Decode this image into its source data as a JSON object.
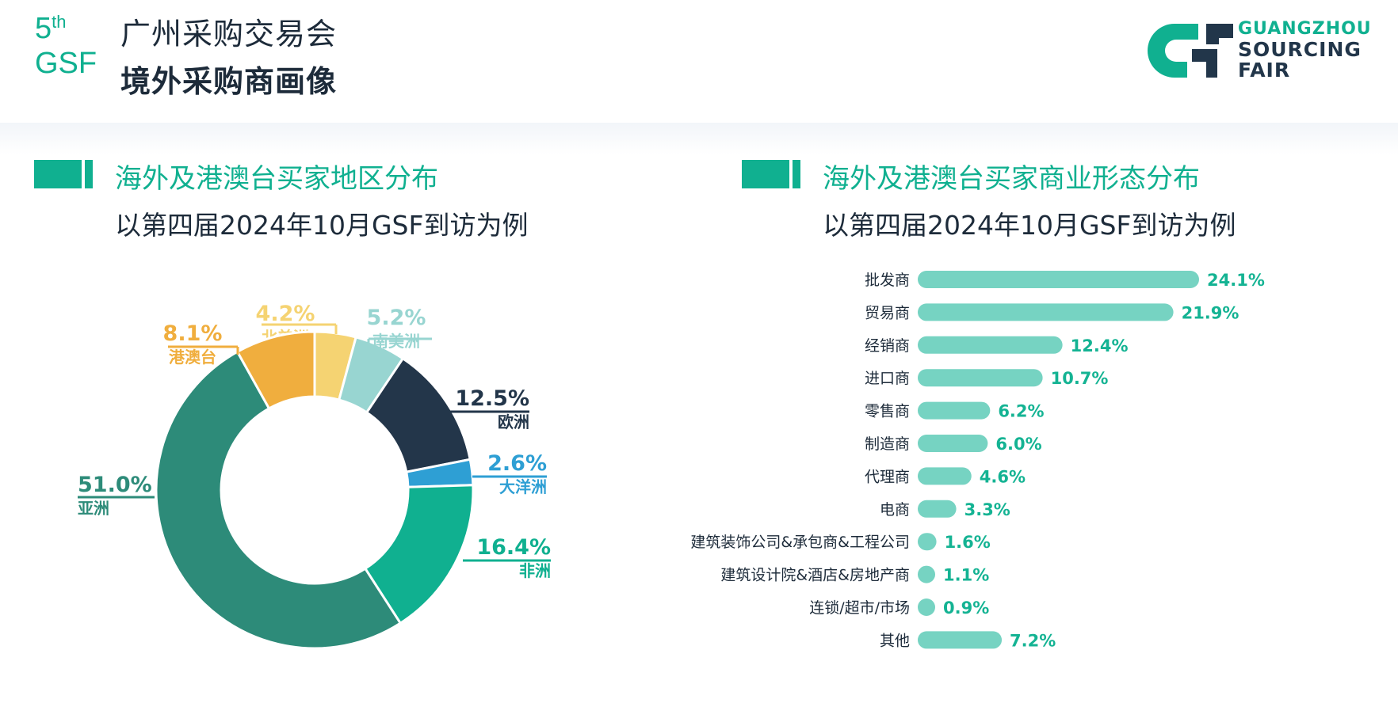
{
  "header": {
    "edition_number": "5",
    "edition_suffix": "th",
    "edition_abbr": "GSF",
    "fair_name": "广州采购交易会",
    "page_title": "境外采购商画像",
    "logo_lines": [
      "GUANGZHOU",
      "SOURCING",
      "FAIR"
    ]
  },
  "left_section": {
    "title": "海外及港澳台买家地区分布",
    "subtitle": "以第四届2024年10月GSF到访为例"
  },
  "right_section": {
    "title": "海外及港澳台买家商业形态分布",
    "subtitle": "以第四届2024年10月GSF到访为例"
  },
  "colors": {
    "accent": "#10b090",
    "dark": "#1d2b3a",
    "bar": "#76d3c2"
  },
  "chart_data": [
    {
      "type": "pie",
      "variant": "donut",
      "slices": [
        {
          "label": "北美洲",
          "value": 4.2,
          "display": "4.2%",
          "color": "#f5d372"
        },
        {
          "label": "南美洲",
          "value": 5.2,
          "display": "5.2%",
          "color": "#98d5d1"
        },
        {
          "label": "欧洲",
          "value": 12.5,
          "display": "12.5%",
          "color": "#23364a"
        },
        {
          "label": "大洋洲",
          "value": 2.6,
          "display": "2.6%",
          "color": "#2e9fd4"
        },
        {
          "label": "非洲",
          "value": 16.4,
          "display": "16.4%",
          "color": "#10b090"
        },
        {
          "label": "亚洲",
          "value": 51.0,
          "display": "51.0%",
          "color": "#2d8b79"
        },
        {
          "label": "港澳台",
          "value": 8.1,
          "display": "8.1%",
          "color": "#f0ae3e"
        }
      ]
    },
    {
      "type": "bar",
      "orientation": "horizontal",
      "categories": [
        "批发商",
        "贸易商",
        "经销商",
        "进口商",
        "零售商",
        "制造商",
        "代理商",
        "电商",
        "建筑装饰公司&承包商&工程公司",
        "建筑设计院&酒店&房地产商",
        "连锁/超市/市场",
        "其他"
      ],
      "values": [
        24.1,
        21.9,
        12.4,
        10.7,
        6.2,
        6.0,
        4.6,
        3.3,
        1.6,
        1.1,
        0.9,
        7.2
      ],
      "value_labels": [
        "24.1%",
        "21.9%",
        "12.4%",
        "10.7%",
        "6.2%",
        "6.0%",
        "4.6%",
        "3.3%",
        "1.6%",
        "1.1%",
        "0.9%",
        "7.2%"
      ]
    }
  ]
}
